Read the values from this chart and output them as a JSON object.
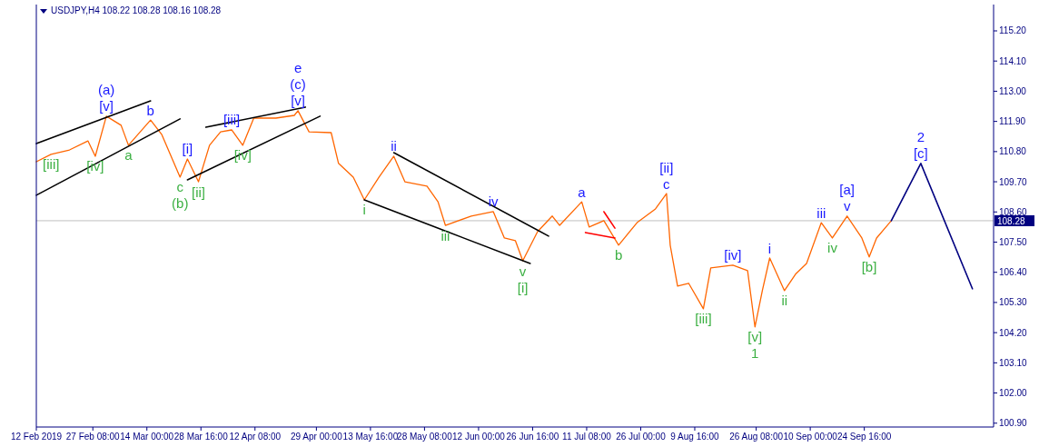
{
  "chart_data": {
    "type": "line",
    "title": "USDJPY,H4 108.22 108.28 108.16 108.28",
    "xlim": [
      "2019-02-12",
      "2019-10-29T18:00"
    ],
    "ylim": [
      100.76,
      116.16
    ],
    "xticks": [
      {
        "value": "2019-02-12",
        "label": "12 Feb 2019"
      },
      {
        "value": "2019-02-27T08:00",
        "label": "27 Feb 08:00"
      },
      {
        "value": "2019-03-14",
        "label": "14 Mar 00:00"
      },
      {
        "value": "2019-03-28T16:00",
        "label": "28 Mar 16:00"
      },
      {
        "value": "2019-04-12T08:00",
        "label": "12 Apr 08:00"
      },
      {
        "value": "2019-04-29",
        "label": "29 Apr 00:00"
      },
      {
        "value": "2019-05-13T16:00",
        "label": "13 May 16:00"
      },
      {
        "value": "2019-05-28T08:00",
        "label": "28 May 08:00"
      },
      {
        "value": "2019-06-12",
        "label": "12 Jun 00:00"
      },
      {
        "value": "2019-06-26T16:00",
        "label": "26 Jun 16:00"
      },
      {
        "value": "2019-07-11T08:00",
        "label": "11 Jul 08:00"
      },
      {
        "value": "2019-07-26",
        "label": "26 Jul 00:00"
      },
      {
        "value": "2019-08-09T16:00",
        "label": "9 Aug 16:00"
      },
      {
        "value": "2019-08-26T08:00",
        "label": "26 Aug 08:00"
      },
      {
        "value": "2019-09-10",
        "label": "10 Sep 00:00"
      },
      {
        "value": "2019-09-24T16:00",
        "label": "24 Sep 16:00"
      }
    ],
    "yticks": [
      {
        "value": 100.9,
        "label": "100.90"
      },
      {
        "value": 102,
        "label": "102.00"
      },
      {
        "value": 103.1,
        "label": "103.10"
      },
      {
        "value": 104.2,
        "label": "104.20"
      },
      {
        "value": 105.3,
        "label": "105.30"
      },
      {
        "value": 106.4,
        "label": "106.40"
      },
      {
        "value": 107.5,
        "label": "107.50"
      },
      {
        "value": 108.6,
        "label": "108.60"
      },
      {
        "value": 109.7,
        "label": "109.70"
      },
      {
        "value": 110.8,
        "label": "110.80"
      },
      {
        "value": 111.9,
        "label": "111.90"
      },
      {
        "value": 113,
        "label": "113.00"
      },
      {
        "value": 114.1,
        "label": "114.10"
      },
      {
        "value": 115.2,
        "label": "115.20"
      }
    ],
    "grid": false,
    "series": [
      {
        "color": "#ff6600",
        "x": [
          "2019-02-12",
          "2019-02-16",
          "2019-02-21",
          "2019-02-26",
          "2019-02-28",
          "2019-03-03",
          "2019-03-07",
          "2019-03-09",
          "2019-03-15",
          "2019-03-18",
          "2019-03-23",
          "2019-03-25",
          "2019-03-28",
          "2019-03-31",
          "2019-04-03",
          "2019-04-06",
          "2019-04-09",
          "2019-04-12",
          "2019-04-18",
          "2019-04-23",
          "2019-04-24",
          "2019-04-27",
          "2019-05-03",
          "2019-05-05",
          "2019-05-09",
          "2019-05-12",
          "2019-05-16",
          "2019-05-20",
          "2019-05-23",
          "2019-05-29",
          "2019-06-01",
          "2019-06-03",
          "2019-06-10",
          "2019-06-16",
          "2019-06-19",
          "2019-06-22",
          "2019-06-24",
          "2019-06-28",
          "2019-07-02",
          "2019-07-04",
          "2019-07-10",
          "2019-07-12",
          "2019-07-16",
          "2019-07-20",
          "2019-07-25",
          "2019-07-30",
          "2019-08-02",
          "2019-08-03",
          "2019-08-05",
          "2019-08-08",
          "2019-08-12",
          "2019-08-14",
          "2019-08-20",
          "2019-08-24",
          "2019-08-26",
          "2019-08-28",
          "2019-08-30",
          "2019-09-03",
          "2019-09-06",
          "2019-09-09",
          "2019-09-13",
          "2019-09-16",
          "2019-09-20",
          "2019-09-24",
          "2019-09-26",
          "2019-09-28",
          "2019-10-02"
        ],
        "values": [
          110.43,
          110.7,
          110.86,
          111.19,
          110.63,
          112.09,
          111.76,
          111.03,
          111.95,
          111.43,
          109.87,
          110.53,
          109.7,
          111.03,
          111.52,
          111.59,
          111.03,
          112.02,
          112.02,
          112.12,
          112.29,
          111.52,
          111.49,
          110.37,
          109.87,
          109.04,
          109.87,
          110.63,
          109.7,
          109.54,
          108.97,
          108.11,
          108.45,
          108.61,
          107.65,
          107.55,
          106.82,
          107.88,
          108.45,
          108.11,
          108.97,
          108.05,
          108.28,
          107.39,
          108.21,
          108.71,
          109.27,
          107.39,
          105.9,
          106,
          105.07,
          106.56,
          106.66,
          106.46,
          104.41,
          105.73,
          106.92,
          105.73,
          106.33,
          106.72,
          108.21,
          107.65,
          108.45,
          107.65,
          106.96,
          107.65,
          108.28
        ]
      },
      {
        "color": "#000080",
        "x": [
          "2019-10-02",
          "2019-10-10",
          "2019-10-24"
        ],
        "values": [
          108.28,
          110.37,
          105.8
        ]
      },
      {
        "color": "#000000",
        "x": [
          "2019-02-12",
          "2019-03-23"
        ],
        "values": [
          109.21,
          111.99
        ]
      },
      {
        "color": "#000000",
        "x": [
          "2019-02-12",
          "2019-03-15"
        ],
        "values": [
          111.09,
          112.65
        ]
      },
      {
        "color": "#000000",
        "x": [
          "2019-03-25",
          "2019-04-30"
        ],
        "values": [
          109.77,
          112.09
        ]
      },
      {
        "color": "#000000",
        "x": [
          "2019-03-30",
          "2019-04-26"
        ],
        "values": [
          111.69,
          112.42
        ]
      },
      {
        "color": "#000000",
        "x": [
          "2019-05-12",
          "2019-06-26"
        ],
        "values": [
          109.04,
          106.72
        ]
      },
      {
        "color": "#000000",
        "x": [
          "2019-05-20",
          "2019-07-01"
        ],
        "values": [
          110.76,
          107.72
        ]
      },
      {
        "color": "#ff0000",
        "x": [
          "2019-07-11",
          "2019-07-19"
        ],
        "values": [
          107.85,
          107.65
        ]
      },
      {
        "color": "#ff0000",
        "x": [
          "2019-07-16",
          "2019-07-19"
        ],
        "values": [
          108.61,
          108.01
        ]
      }
    ],
    "ref_lines": [
      {
        "axis": "y",
        "value": 108.28,
        "label": "108.28",
        "color": "#c0c0c0"
      }
    ],
    "annotations": [
      {
        "text": "[iii]",
        "x": "2019-02-16",
        "y": 110.7
      },
      {
        "text": "[v]",
        "x": "2019-03-03",
        "y": 112.09
      },
      {
        "text": "(a)",
        "x": "2019-03-03",
        "y": 112.09
      },
      {
        "text": "b",
        "x": "2019-03-15",
        "y": 111.95
      },
      {
        "text": "[iv]",
        "x": "2019-02-28",
        "y": 110.63
      },
      {
        "text": "a",
        "x": "2019-03-09",
        "y": 111.03
      },
      {
        "text": "c",
        "x": "2019-03-23",
        "y": 109.87
      },
      {
        "text": "(b)",
        "x": "2019-03-23",
        "y": 109.87
      },
      {
        "text": "[i]",
        "x": "2019-03-25",
        "y": 110.53
      },
      {
        "text": "[ii]",
        "x": "2019-03-28",
        "y": 109.7
      },
      {
        "text": "[iii]",
        "x": "2019-04-06",
        "y": 111.59
      },
      {
        "text": "[iv]",
        "x": "2019-04-09",
        "y": 111.03
      },
      {
        "text": "[v]",
        "x": "2019-04-24",
        "y": 112.29
      },
      {
        "text": "(c)",
        "x": "2019-04-24",
        "y": 112.29
      },
      {
        "text": "e",
        "x": "2019-04-24",
        "y": 112.29
      },
      {
        "text": "i",
        "x": "2019-05-12",
        "y": 109.04
      },
      {
        "text": "ii",
        "x": "2019-05-20",
        "y": 110.63
      },
      {
        "text": "iii",
        "x": "2019-06-03",
        "y": 108.11
      },
      {
        "text": "iv",
        "x": "2019-06-16",
        "y": 108.61
      },
      {
        "text": "v",
        "x": "2019-06-24",
        "y": 106.82
      },
      {
        "text": "[i]",
        "x": "2019-06-24",
        "y": 106.82
      },
      {
        "text": "a",
        "x": "2019-07-10",
        "y": 108.97
      },
      {
        "text": "b",
        "x": "2019-07-20",
        "y": 107.39
      },
      {
        "text": "c",
        "x": "2019-08-02",
        "y": 109.27
      },
      {
        "text": "[ii]",
        "x": "2019-08-02",
        "y": 109.27
      },
      {
        "text": "[iii]",
        "x": "2019-08-12",
        "y": 105.07
      },
      {
        "text": "[iv]",
        "x": "2019-08-20",
        "y": 106.66
      },
      {
        "text": "[v]",
        "x": "2019-08-26",
        "y": 104.41
      },
      {
        "text": "1",
        "x": "2019-08-26",
        "y": 104.41
      },
      {
        "text": "i",
        "x": "2019-08-30",
        "y": 106.92
      },
      {
        "text": "ii",
        "x": "2019-09-03",
        "y": 105.73
      },
      {
        "text": "iii",
        "x": "2019-09-13",
        "y": 108.21
      },
      {
        "text": "iv",
        "x": "2019-09-16",
        "y": 107.65
      },
      {
        "text": "v",
        "x": "2019-09-20",
        "y": 108.45
      },
      {
        "text": "[a]",
        "x": "2019-09-20",
        "y": 108.45
      },
      {
        "text": "[b]",
        "x": "2019-09-26",
        "y": 106.96
      },
      {
        "text": "[c]",
        "x": "2019-10-10",
        "y": 110.37
      },
      {
        "text": "2",
        "x": "2019-10-10",
        "y": 110.37
      }
    ]
  }
}
